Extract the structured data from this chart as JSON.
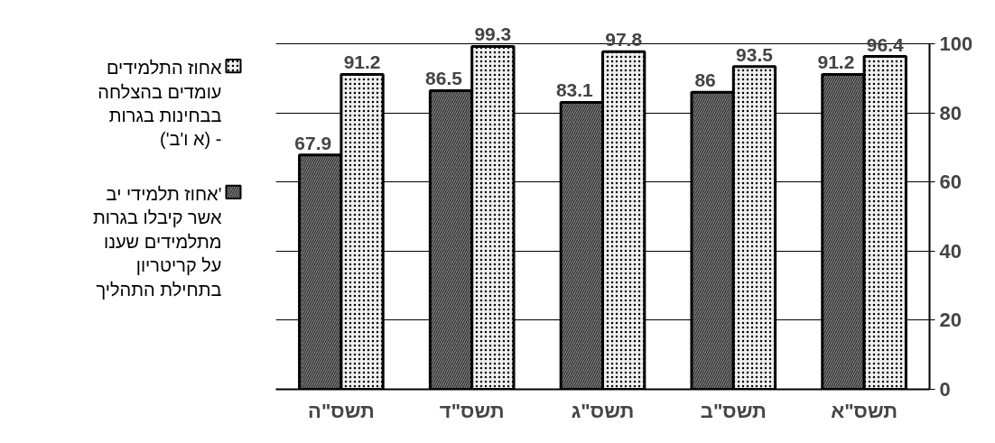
{
  "chart_data": {
    "type": "bar",
    "categories": [
      "תשס\"ה",
      "תשס\"ד",
      "תשס\"ג",
      "תשס\"ב",
      "תשס\"א"
    ],
    "series": [
      {
        "name": "אחוז תלמידי יב' אשר קיבלו בגרות מתלמידים שענו על קריטריון בתחילת התהליך",
        "color": "#808080",
        "values": [
          67.9,
          86.5,
          83.1,
          86,
          91.2
        ]
      },
      {
        "name": "אחוז התלמידים עומדים בהצלחה בבחינות בגרות ('א ו'ב) -",
        "color": "#f0f0f0",
        "values": [
          91.2,
          99.3,
          97.8,
          93.5,
          96.4
        ]
      }
    ],
    "ylim": [
      0,
      100
    ],
    "yticks": [
      0,
      20,
      40,
      60,
      80,
      100
    ],
    "grid": "y",
    "legend": "left",
    "data_labels": true
  }
}
